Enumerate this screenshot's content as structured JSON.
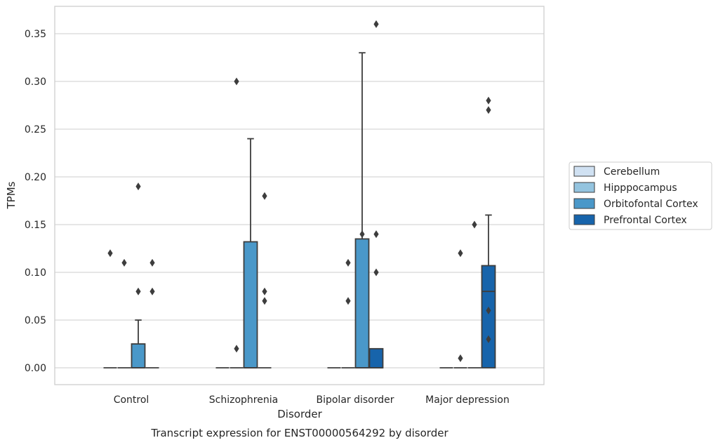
{
  "chart_data": {
    "type": "box",
    "title": "",
    "caption": "Transcript expression for ENST00000564292 by disorder",
    "xlabel": "Disorder",
    "ylabel": "TPMs",
    "ylim": [
      -0.017,
      0.38
    ],
    "yticks": [
      0.0,
      0.05,
      0.1,
      0.15,
      0.2,
      0.25,
      0.3,
      0.35
    ],
    "ytick_labels": [
      "0.00",
      "0.05",
      "0.10",
      "0.15",
      "0.20",
      "0.25",
      "0.30",
      "0.35"
    ],
    "categories": [
      "Control",
      "Schizophrenia",
      "Bipolar disorder",
      "Major depression"
    ],
    "grid": "horizontal",
    "legend_position": "right",
    "series": [
      {
        "name": "Cerebellum",
        "color": "#d0e1f2",
        "boxes": [
          {
            "q1": 0,
            "median": 0,
            "q3": 0,
            "whisker_low": 0,
            "whisker_high": 0,
            "outliers": [
              0.12
            ]
          },
          {
            "q1": 0,
            "median": 0,
            "q3": 0,
            "whisker_low": 0,
            "whisker_high": 0,
            "outliers": []
          },
          {
            "q1": 0,
            "median": 0,
            "q3": 0,
            "whisker_low": 0,
            "whisker_high": 0,
            "outliers": []
          },
          {
            "q1": 0,
            "median": 0,
            "q3": 0,
            "whisker_low": 0,
            "whisker_high": 0,
            "outliers": []
          }
        ]
      },
      {
        "name": "Hipppocampus",
        "color": "#94c4df",
        "boxes": [
          {
            "q1": 0,
            "median": 0,
            "q3": 0,
            "whisker_low": 0,
            "whisker_high": 0,
            "outliers": [
              0.11
            ]
          },
          {
            "q1": 0,
            "median": 0,
            "q3": 0,
            "whisker_low": 0,
            "whisker_high": 0,
            "outliers": [
              0.02,
              0.3
            ]
          },
          {
            "q1": 0,
            "median": 0,
            "q3": 0,
            "whisker_low": 0,
            "whisker_high": 0,
            "outliers": [
              0.07,
              0.11
            ]
          },
          {
            "q1": 0,
            "median": 0,
            "q3": 0,
            "whisker_low": 0,
            "whisker_high": 0,
            "outliers": [
              0.01,
              0.12
            ]
          }
        ]
      },
      {
        "name": "Orbitofontal Cortex",
        "color": "#4a98c9",
        "boxes": [
          {
            "q1": 0,
            "median": 0,
            "q3": 0.025,
            "whisker_low": 0,
            "whisker_high": 0.05,
            "outliers": [
              0.08,
              0.19
            ]
          },
          {
            "q1": 0,
            "median": 0,
            "q3": 0.132,
            "whisker_low": 0,
            "whisker_high": 0.24,
            "outliers": []
          },
          {
            "q1": 0,
            "median": 0,
            "q3": 0.135,
            "whisker_low": 0,
            "whisker_high": 0.33,
            "outliers": [
              0.14
            ]
          },
          {
            "q1": 0,
            "median": 0,
            "q3": 0,
            "whisker_low": 0,
            "whisker_high": 0,
            "outliers": [
              0.15
            ]
          }
        ]
      },
      {
        "name": "Prefrontal Cortex",
        "color": "#1764ab",
        "boxes": [
          {
            "q1": 0,
            "median": 0,
            "q3": 0,
            "whisker_low": 0,
            "whisker_high": 0,
            "outliers": [
              0.08,
              0.11
            ]
          },
          {
            "q1": 0,
            "median": 0,
            "q3": 0,
            "whisker_low": 0,
            "whisker_high": 0,
            "outliers": [
              0.07,
              0.08,
              0.18
            ]
          },
          {
            "q1": 0,
            "median": 0,
            "q3": 0.02,
            "whisker_low": 0,
            "whisker_high": 0.02,
            "outliers": [
              0.1,
              0.14,
              0.36
            ]
          },
          {
            "q1": 0,
            "median": 0.08,
            "q3": 0.107,
            "whisker_low": 0,
            "whisker_high": 0.16,
            "outliers": [
              0.03,
              0.06,
              0.27,
              0.28
            ]
          }
        ]
      }
    ]
  }
}
